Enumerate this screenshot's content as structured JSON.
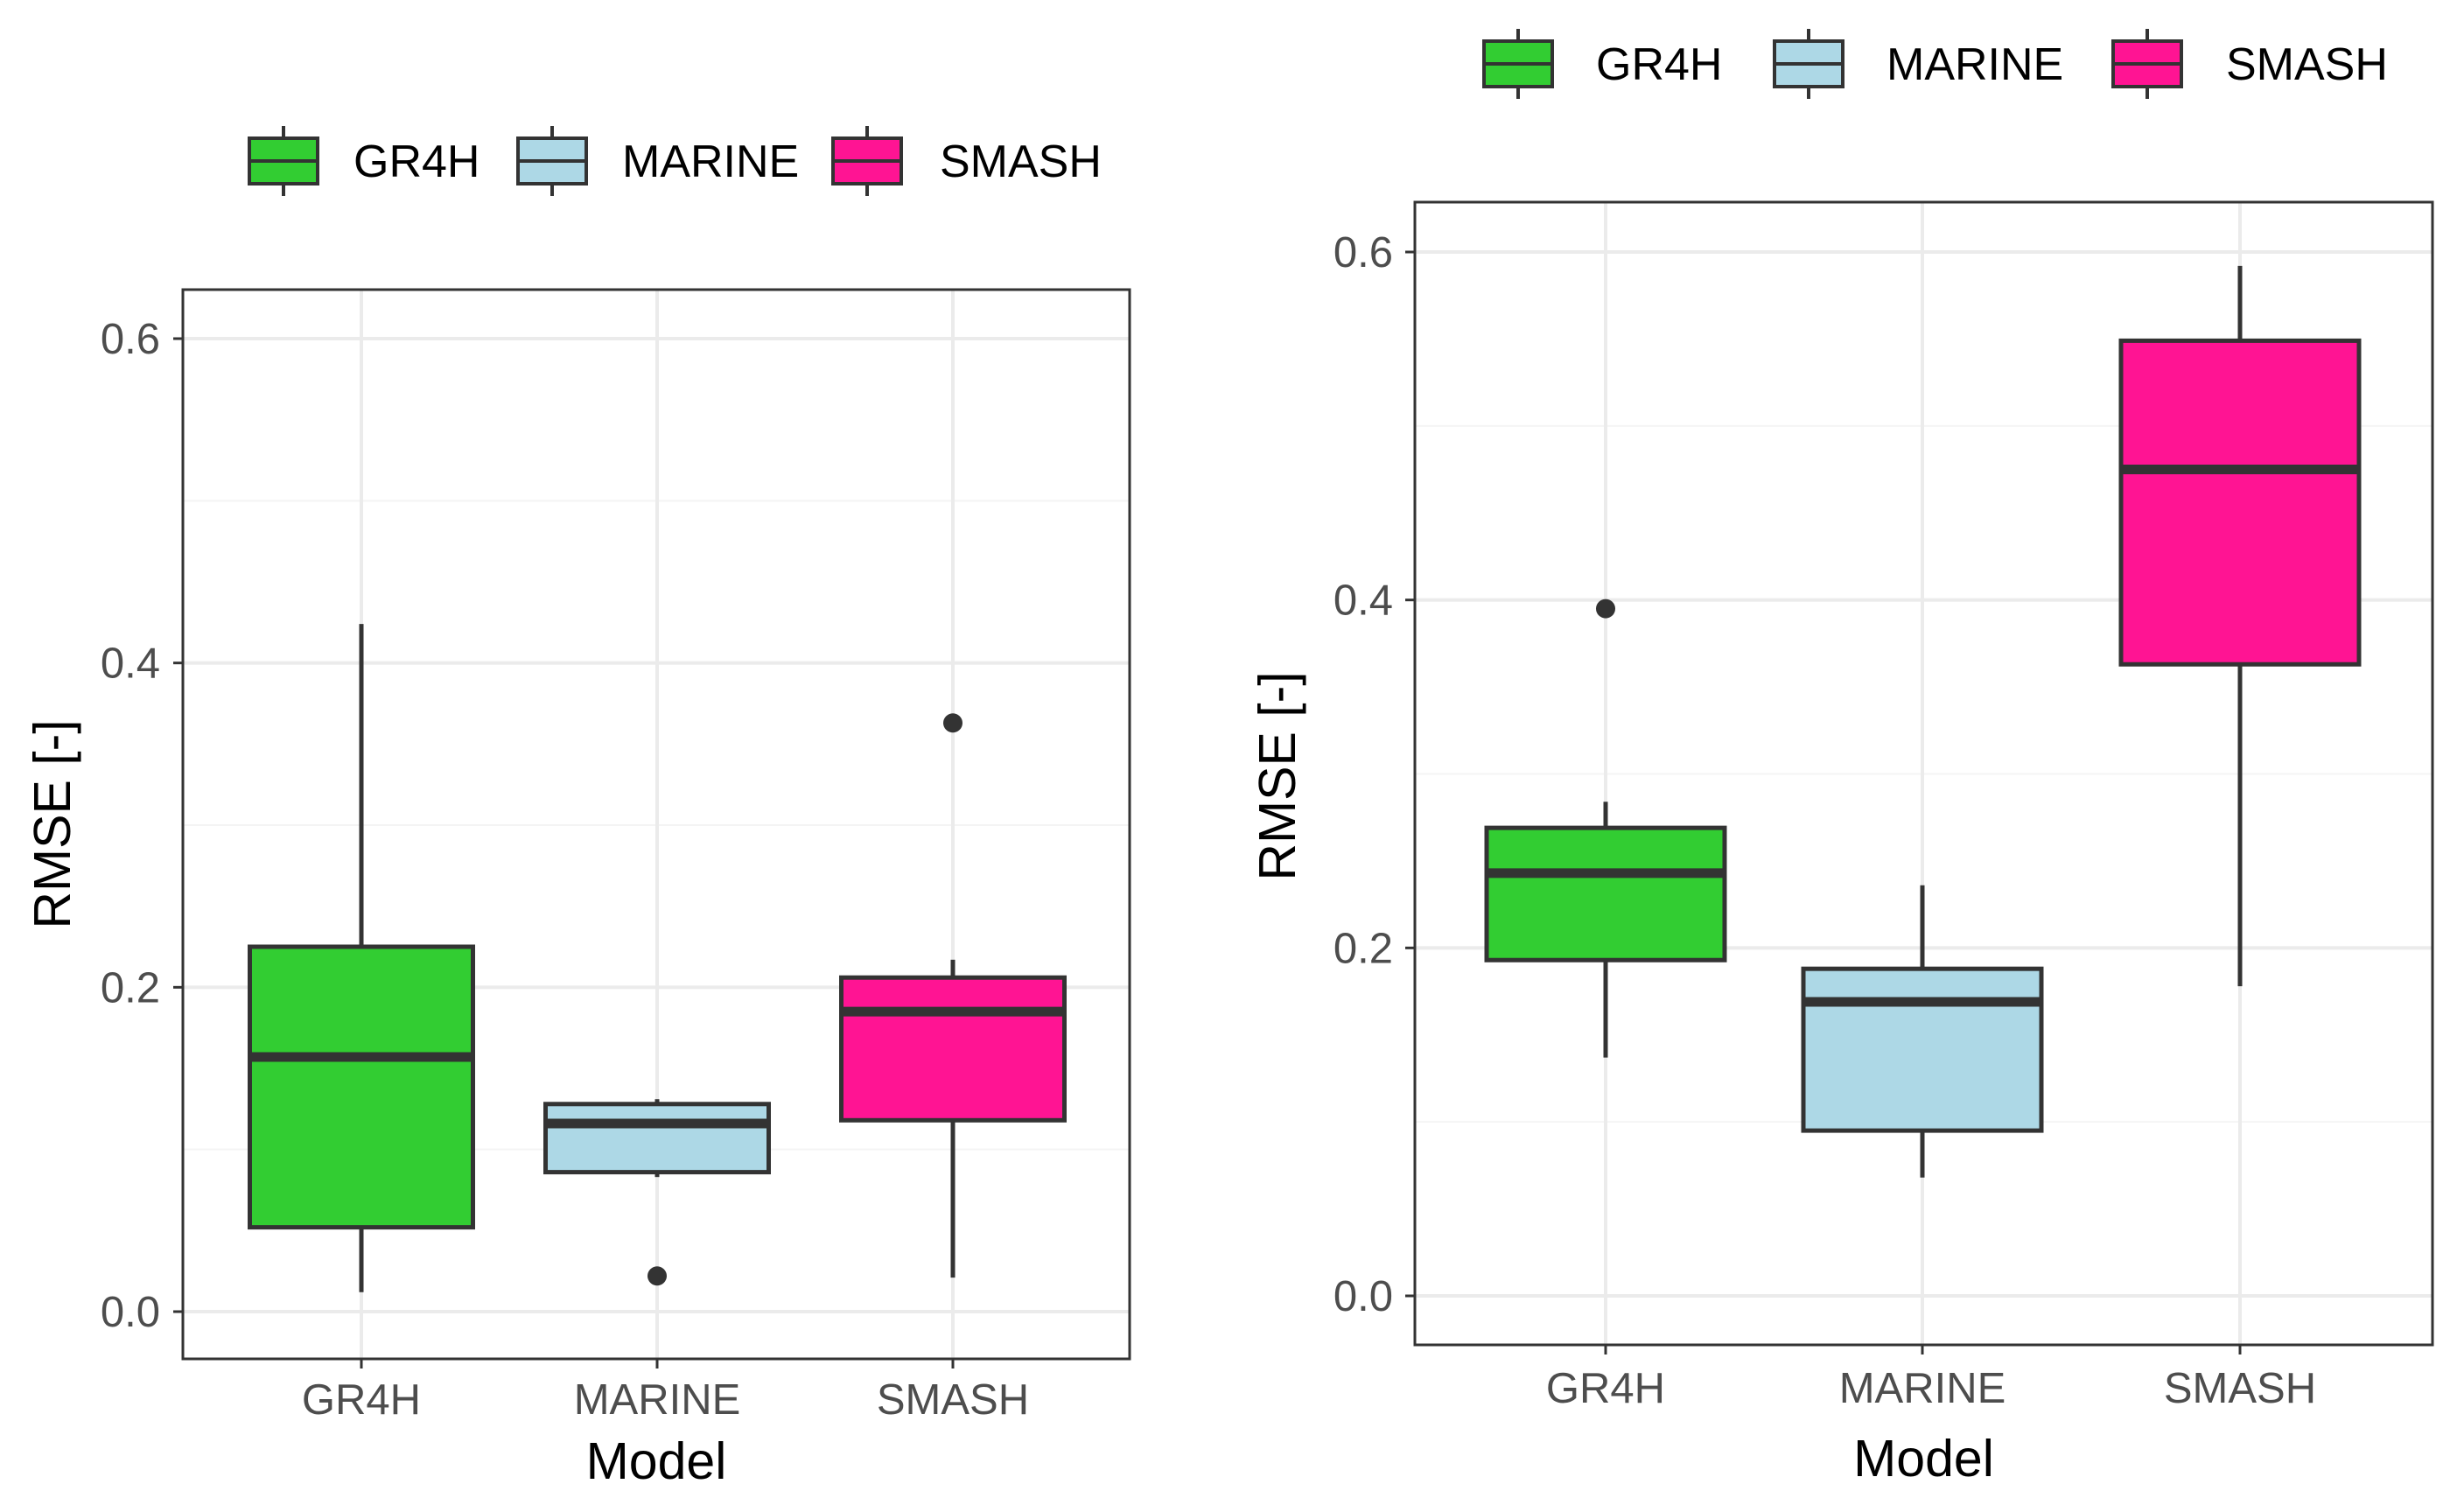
{
  "chart_data": [
    {
      "type": "box",
      "title": "",
      "xlabel": "Model",
      "ylabel": "RMSE [-]",
      "categories": [
        "GR4H",
        "MARINE",
        "SMASH"
      ],
      "ylim": [
        -0.03,
        0.63
      ],
      "yticks": [
        0.0,
        0.2,
        0.4,
        0.6
      ],
      "ytick_labels": [
        "0.0",
        "0.2",
        "0.4",
        "0.6"
      ],
      "grid": true,
      "legend": {
        "position": "top",
        "entries": [
          "GR4H",
          "MARINE",
          "SMASH"
        ]
      },
      "series": [
        {
          "category": "GR4H",
          "whisker_low": 0.012,
          "q1": 0.052,
          "median": 0.157,
          "q3": 0.225,
          "whisker_high": 0.424,
          "outliers": []
        },
        {
          "category": "MARINE",
          "whisker_low": 0.083,
          "q1": 0.086,
          "median": 0.116,
          "q3": 0.128,
          "whisker_high": 0.131,
          "outliers": [
            0.022
          ]
        },
        {
          "category": "SMASH",
          "whisker_low": 0.021,
          "q1": 0.118,
          "median": 0.185,
          "q3": 0.206,
          "whisker_high": 0.217,
          "outliers": [
            0.363
          ]
        }
      ]
    },
    {
      "type": "box",
      "title": "",
      "xlabel": "Model",
      "ylabel": "RMSE [-]",
      "categories": [
        "GR4H",
        "MARINE",
        "SMASH"
      ],
      "ylim": [
        -0.03,
        0.63
      ],
      "yticks": [
        0.0,
        0.2,
        0.4,
        0.6
      ],
      "ytick_labels": [
        "0.0",
        "0.2",
        "0.4",
        "0.6"
      ],
      "grid": true,
      "legend": {
        "position": "top",
        "entries": [
          "GR4H",
          "MARINE",
          "SMASH"
        ]
      },
      "series": [
        {
          "category": "GR4H",
          "whisker_low": 0.137,
          "q1": 0.193,
          "median": 0.243,
          "q3": 0.269,
          "whisker_high": 0.284,
          "outliers": [
            0.395
          ]
        },
        {
          "category": "MARINE",
          "whisker_low": 0.068,
          "q1": 0.095,
          "median": 0.169,
          "q3": 0.188,
          "whisker_high": 0.236,
          "outliers": []
        },
        {
          "category": "SMASH",
          "whisker_low": 0.178,
          "q1": 0.363,
          "median": 0.475,
          "q3": 0.549,
          "whisker_high": 0.592,
          "outliers": []
        }
      ]
    }
  ],
  "colors": {
    "GR4H": "#32cd32",
    "MARINE": "#add8e6",
    "SMASH": "#ff1493",
    "stroke": "#333333",
    "grid_major": "#ebebeb",
    "grid_minor": "#f4f4f4",
    "panel_border": "#333333"
  }
}
